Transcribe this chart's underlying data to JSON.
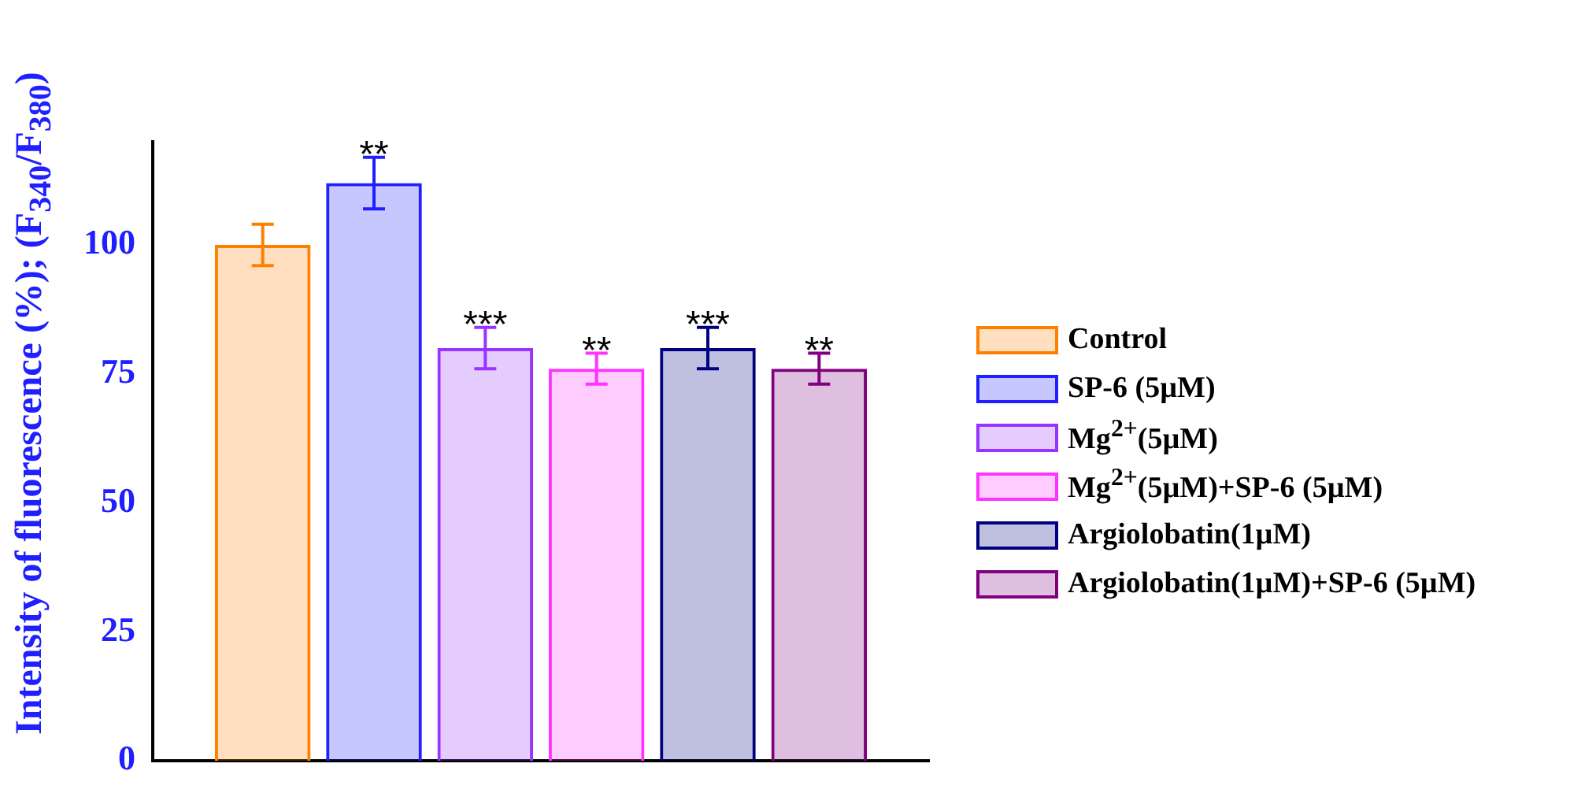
{
  "chart_data": {
    "type": "bar",
    "ylabel": "Intensity of fluorescence (%); (F$_{340}$/F$_{380}$)",
    "categories": [
      null
    ],
    "series": [
      {
        "name": "Control",
        "color": "#ff8000",
        "values": [
          100
        ],
        "errors": [
          4
        ],
        "value_labels": [
          null
        ]
      },
      {
        "name": "SP-6 (5µM)",
        "color": "#1f1fff",
        "values": [
          112
        ],
        "errors": [
          5
        ],
        "value_labels": [
          "**"
        ]
      },
      {
        "name": "Mg$^{2+}$(5µM)",
        "color": "#9933ff",
        "values": [
          80
        ],
        "errors": [
          4
        ],
        "value_labels": [
          "***"
        ]
      },
      {
        "name": "Mg$^{2+}$(5µM)+SP-6 (5µM)",
        "color": "#ff33ff",
        "values": [
          76
        ],
        "errors": [
          3
        ],
        "value_labels": [
          "**"
        ]
      },
      {
        "name": "Argiolobatin(1µM)",
        "color": "#000080",
        "values": [
          80
        ],
        "errors": [
          4
        ],
        "value_labels": [
          "***"
        ]
      },
      {
        "name": "Argiolobatin(1µM)+SP-6 (5µM)",
        "color": "#800080",
        "values": [
          76
        ],
        "errors": [
          3
        ],
        "value_labels": [
          "**"
        ]
      }
    ],
    "ylim": [
      0,
      120
    ],
    "yticks": [
      0,
      25,
      50,
      75,
      100
    ],
    "grid": false,
    "legend": "right",
    "tick_labels": "y"
  }
}
